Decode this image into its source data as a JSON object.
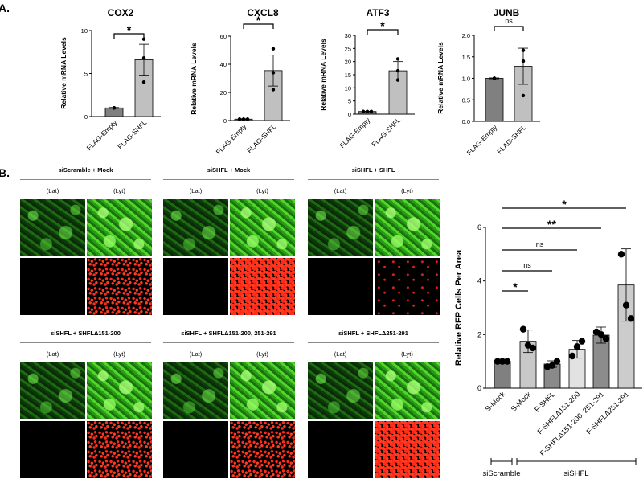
{
  "panel_labels": [
    "A.",
    "B."
  ],
  "chart_data": [
    {
      "type": "bar",
      "title": "COX2",
      "ylabel": "Relative mRNA Levels",
      "ylim": [
        0,
        10
      ],
      "yticks": [
        0,
        5,
        10
      ],
      "categories": [
        "FLAG-Empty",
        "FLAG-SHFL"
      ],
      "values": [
        1.0,
        6.6
      ],
      "errors": [
        0.05,
        1.8
      ],
      "points": [
        [
          1.0,
          1.0,
          1.0
        ],
        [
          4.0,
          6.8,
          9.0
        ]
      ],
      "colors": [
        "#808080",
        "#c0c0c0"
      ],
      "significance": [
        {
          "from": 0,
          "to": 1,
          "label": "*"
        }
      ]
    },
    {
      "type": "bar",
      "title": "CXCL8",
      "ylabel": "Relative mRNA Levels",
      "ylim": [
        0,
        60
      ],
      "yticks": [
        0,
        20,
        40,
        60
      ],
      "categories": [
        "FLAG-Empty",
        "FLAG-SHFL"
      ],
      "values": [
        1.0,
        35.5
      ],
      "errors": [
        0.3,
        11
      ],
      "points": [
        [
          1.0,
          1.0,
          1.0
        ],
        [
          22,
          34,
          51
        ]
      ],
      "colors": [
        "#808080",
        "#c0c0c0"
      ],
      "significance": [
        {
          "from": 0,
          "to": 1,
          "label": "*"
        }
      ]
    },
    {
      "type": "bar",
      "title": "ATF3",
      "ylabel": "Relative mRNA Levels",
      "ylim": [
        0,
        30
      ],
      "yticks": [
        0,
        5,
        10,
        15,
        20,
        25,
        30
      ],
      "categories": [
        "FLAG-Empty",
        "FLAG-SHFL"
      ],
      "values": [
        1.0,
        16.5
      ],
      "errors": [
        0.1,
        3.5
      ],
      "points": [
        [
          1.0,
          1.0,
          1.0
        ],
        [
          13,
          16.5,
          21
        ]
      ],
      "colors": [
        "#808080",
        "#c0c0c0"
      ],
      "significance": [
        {
          "from": 0,
          "to": 1,
          "label": "*"
        }
      ]
    },
    {
      "type": "bar",
      "title": "JUNB",
      "ylabel": "Relative mRNA Levels",
      "ylim": [
        0,
        2.0
      ],
      "yticks": [
        "0.0",
        "0.5",
        "1.0",
        "1.5",
        "2.0"
      ],
      "categories": [
        "FLAG-Empty",
        "FLAG-SHFL"
      ],
      "values": [
        1.0,
        1.28
      ],
      "errors": [
        0.01,
        0.42
      ],
      "points": [
        [
          1.0,
          1.0,
          1.0
        ],
        [
          0.6,
          1.4,
          1.65
        ]
      ],
      "colors": [
        "#808080",
        "#c0c0c0"
      ],
      "significance": [
        {
          "from": 0,
          "to": 1,
          "label": "ns"
        }
      ]
    },
    {
      "type": "bar",
      "title": "",
      "ylabel": "Relative RFP Cells Per Area",
      "ylim": [
        0,
        6
      ],
      "yticks": [
        0,
        2,
        4,
        6
      ],
      "categories": [
        "S-Mock",
        "S-Mock",
        "F-SHFL",
        "F-SHFLΔ151-200",
        "F-SHFLΔ151-200, 251-291",
        "F-SHFLΔ251-291"
      ],
      "values": [
        1.0,
        1.75,
        0.9,
        1.45,
        1.98,
        3.85
      ],
      "errors": [
        0.02,
        0.42,
        0.12,
        0.33,
        0.3,
        1.35
      ],
      "points": [
        [
          1.0,
          1.0,
          1.0
        ],
        [
          2.2,
          1.6,
          1.5
        ],
        [
          0.8,
          0.85,
          1.0
        ],
        [
          1.2,
          1.55,
          1.75
        ],
        [
          2.1,
          2.0,
          1.85
        ],
        [
          5.0,
          3.1,
          2.6
        ]
      ],
      "colors": [
        "#808080",
        "#c8c8c8",
        "#8a8a8a",
        "#e2e2e2",
        "#8c8c8c",
        "#cccccc"
      ],
      "significance": [
        {
          "from": 0,
          "to": 5,
          "label": "*"
        },
        {
          "from": 0,
          "to": 4,
          "label": "**"
        },
        {
          "from": 0,
          "to": 3,
          "label": "ns"
        },
        {
          "from": 0,
          "to": 2,
          "label": "ns"
        },
        {
          "from": 0,
          "to": 1,
          "label": "*"
        }
      ],
      "group_labels": [
        {
          "label": "siScramble",
          "from": 0,
          "to": 0
        },
        {
          "label": "siSHFL",
          "from": 1,
          "to": 5
        }
      ]
    }
  ],
  "microscopy": {
    "groups": [
      {
        "label": "siScramble + Mock",
        "columns": [
          "(Lat)",
          "(Lyt)"
        ]
      },
      {
        "label": "siSHFL + Mock",
        "columns": [
          "(Lat)",
          "(Lyt)"
        ]
      },
      {
        "label": "siSHFL + SHFL",
        "columns": [
          "(Lat)",
          "(Lyt)"
        ]
      },
      {
        "label": "siSHFL + SHFLΔ151-200",
        "columns": [
          "(Lat)",
          "(Lyt)"
        ]
      },
      {
        "label": "siSHFL + SHFLΔ151-200, 251-291",
        "columns": [
          "(Lat)",
          "(Lyt)"
        ]
      },
      {
        "label": "siSHFL + SHFLΔ251-291",
        "columns": [
          "(Lat)",
          "(Lyt)"
        ]
      }
    ]
  }
}
